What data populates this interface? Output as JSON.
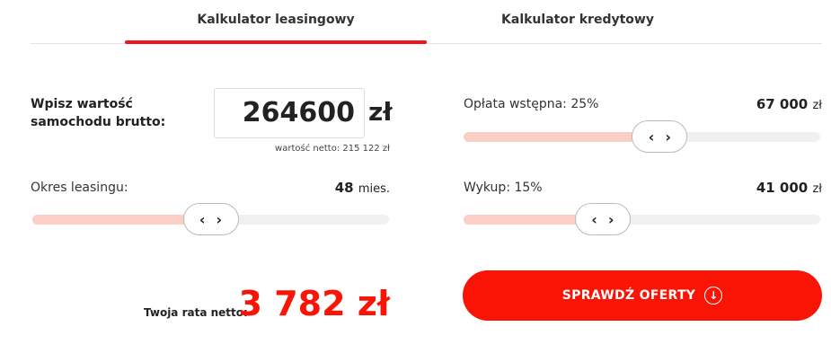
{
  "tabs": [
    {
      "label": "Kalkulator leasingowy",
      "active": true
    },
    {
      "label": "Kalkulator kredytowy",
      "active": false
    }
  ],
  "accent": "#f0141e",
  "car_value": {
    "label": "Wpisz wartość samochodu brutto:",
    "value": "264600",
    "currency": "zł",
    "net_note": "wartość netto: 215 122 zł"
  },
  "lease_period": {
    "label": "Okres leasingu:",
    "value": "48",
    "unit": "mies.",
    "slider_fraction": 0.5
  },
  "down_payment": {
    "label": "Opłata wstępna: 25%",
    "value": "67 000",
    "unit": "zł",
    "slider_fraction": 0.55
  },
  "buyout": {
    "label": "Wykup: 15%",
    "value": "41 000",
    "unit": "zł",
    "slider_fraction": 0.39
  },
  "rate": {
    "label": "Twoja rata netto:",
    "value": "3 782 zł"
  },
  "cta": {
    "label": "SPRAWDŹ OFERTY",
    "icon": "arrow-down-circle-icon"
  },
  "handle_icons": {
    "left": "‹",
    "right": "›"
  }
}
